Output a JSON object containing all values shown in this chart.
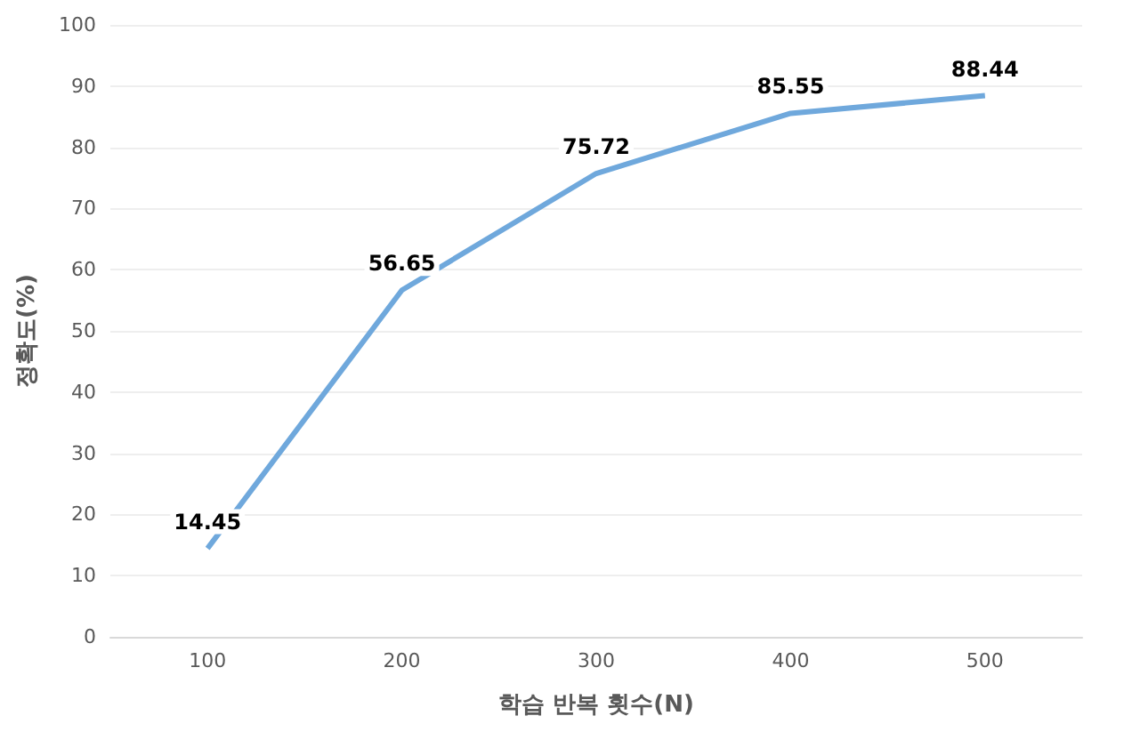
{
  "chart_data": {
    "type": "line",
    "xlabel": "학습 반복 횟수(N)",
    "ylabel": "정확도(%)",
    "categories": [
      "100",
      "200",
      "300",
      "400",
      "500"
    ],
    "series": [
      {
        "color": "#6fa8dc",
        "values": [
          14.45,
          56.65,
          75.72,
          85.55,
          88.44
        ]
      }
    ],
    "ylim": [
      0,
      100
    ],
    "yticks": [
      0,
      10,
      20,
      30,
      40,
      50,
      60,
      70,
      80,
      90,
      100
    ],
    "grid": "y",
    "data_labels": true,
    "marker": "none",
    "line_style": "solid"
  }
}
